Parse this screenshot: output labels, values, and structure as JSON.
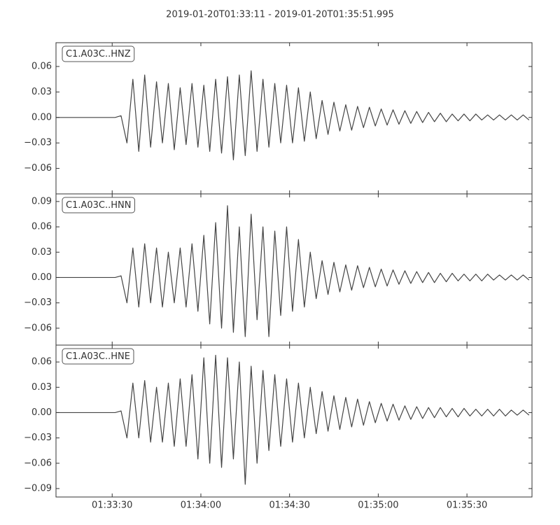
{
  "title": "2019-01-20T01:33:11  -  2019-01-20T01:35:51.995",
  "x": [
    0,
    2,
    4,
    6,
    8,
    10,
    12,
    14,
    16,
    18,
    20,
    22,
    24,
    26,
    28,
    30,
    32,
    34,
    36,
    38,
    40,
    42,
    44,
    46,
    48,
    50,
    52,
    54,
    56,
    58,
    60,
    62,
    64,
    66,
    68,
    70,
    72,
    74,
    76,
    78,
    80,
    82,
    84,
    86,
    88,
    90,
    92,
    94,
    96,
    98,
    100,
    102,
    104,
    106,
    108,
    110,
    112,
    114,
    116,
    118,
    120,
    122,
    124,
    126,
    128,
    130,
    132,
    134,
    136,
    138,
    140,
    142,
    144,
    146,
    148,
    150,
    152,
    154,
    156,
    158,
    160
  ],
  "xlim": [
    0,
    160.995
  ],
  "xticks": [
    {
      "value": 19,
      "label": "01:33:30"
    },
    {
      "value": 49,
      "label": "01:34:00"
    },
    {
      "value": 79,
      "label": "01:34:30"
    },
    {
      "value": 109,
      "label": "01:35:00"
    },
    {
      "value": 139,
      "label": "01:35:30"
    }
  ],
  "chart_data": [
    {
      "type": "line",
      "label": "C1.A03C..HNZ",
      "color": "#444444",
      "values": [
        0,
        0,
        0,
        0,
        0,
        0,
        0,
        0,
        0,
        0,
        0,
        0.002,
        -0.03,
        0.045,
        -0.04,
        0.05,
        -0.035,
        0.042,
        -0.03,
        0.04,
        -0.038,
        0.035,
        -0.032,
        0.04,
        -0.035,
        0.038,
        -0.04,
        0.045,
        -0.042,
        0.048,
        -0.05,
        0.05,
        -0.045,
        0.055,
        -0.04,
        0.045,
        -0.035,
        0.04,
        -0.03,
        0.038,
        -0.03,
        0.035,
        -0.028,
        0.03,
        -0.025,
        0.02,
        -0.02,
        0.018,
        -0.016,
        0.015,
        -0.015,
        0.013,
        -0.012,
        0.012,
        -0.01,
        0.01,
        -0.009,
        0.009,
        -0.008,
        0.008,
        -0.007,
        0.007,
        -0.006,
        0.006,
        -0.005,
        0.005,
        -0.005,
        0.004,
        -0.004,
        0.004,
        -0.004,
        0.004,
        -0.003,
        0.003,
        -0.003,
        0.003,
        -0.003,
        0.003,
        -0.003,
        0.003,
        -0.003
      ],
      "ylim": [
        -0.09,
        0.088
      ],
      "yticks": [
        {
          "value": -0.06,
          "label": "−0.06"
        },
        {
          "value": -0.03,
          "label": "−0.03"
        },
        {
          "value": 0,
          "label": "0.00"
        },
        0.03,
        0.06
      ]
    },
    {
      "type": "line",
      "label": "C1.A03C..HNN",
      "color": "#444444",
      "values": [
        0,
        0,
        0,
        0,
        0,
        0,
        0,
        0,
        0,
        0,
        0,
        0.002,
        -0.03,
        0.035,
        -0.035,
        0.04,
        -0.03,
        0.035,
        -0.035,
        0.03,
        -0.03,
        0.035,
        -0.035,
        0.04,
        -0.04,
        0.05,
        -0.055,
        0.065,
        -0.06,
        0.085,
        -0.065,
        0.06,
        -0.07,
        0.075,
        -0.05,
        0.06,
        -0.07,
        0.055,
        -0.045,
        0.06,
        -0.04,
        0.045,
        -0.035,
        0.03,
        -0.025,
        0.02,
        -0.02,
        0.018,
        -0.017,
        0.015,
        -0.015,
        0.014,
        -0.012,
        0.012,
        -0.011,
        0.01,
        -0.01,
        0.009,
        -0.008,
        0.008,
        -0.007,
        0.007,
        -0.006,
        0.006,
        -0.006,
        0.005,
        -0.005,
        0.005,
        -0.004,
        0.004,
        -0.004,
        0.004,
        -0.004,
        0.004,
        -0.003,
        0.003,
        -0.003,
        0.003,
        -0.003,
        0.003,
        -0.003
      ],
      "ylim": [
        -0.08,
        0.099
      ],
      "yticks": [
        {
          "value": -0.06,
          "label": "−0.06"
        },
        {
          "value": -0.03,
          "label": "−0.03"
        },
        {
          "value": 0,
          "label": "0.00"
        },
        0.03,
        0.06,
        0.09
      ]
    },
    {
      "type": "line",
      "label": "C1.A03C..HNE",
      "color": "#444444",
      "values": [
        0,
        0,
        0,
        0,
        0,
        0,
        0,
        0,
        0,
        0,
        0,
        0.002,
        -0.03,
        0.035,
        -0.03,
        0.038,
        -0.035,
        0.03,
        -0.035,
        0.035,
        -0.04,
        0.04,
        -0.04,
        0.045,
        -0.055,
        0.065,
        -0.06,
        0.068,
        -0.065,
        0.065,
        -0.055,
        0.06,
        -0.085,
        0.055,
        -0.06,
        0.05,
        -0.045,
        0.045,
        -0.04,
        0.04,
        -0.035,
        0.035,
        -0.03,
        0.03,
        -0.025,
        0.025,
        -0.022,
        0.02,
        -0.02,
        0.018,
        -0.017,
        0.016,
        -0.015,
        0.013,
        -0.012,
        0.011,
        -0.01,
        0.01,
        -0.009,
        0.008,
        -0.008,
        0.007,
        -0.007,
        0.006,
        -0.006,
        0.006,
        -0.005,
        0.005,
        -0.005,
        0.005,
        -0.004,
        0.004,
        -0.004,
        0.004,
        -0.004,
        0.004,
        -0.004,
        0.003,
        -0.003,
        0.003,
        -0.003
      ],
      "ylim": [
        -0.1,
        0.08
      ],
      "yticks": [
        {
          "value": -0.09,
          "label": "−0.09"
        },
        {
          "value": -0.06,
          "label": "−0.06"
        },
        {
          "value": -0.03,
          "label": "−0.03"
        },
        {
          "value": 0,
          "label": "0.00"
        },
        0.03,
        0.06
      ]
    }
  ]
}
